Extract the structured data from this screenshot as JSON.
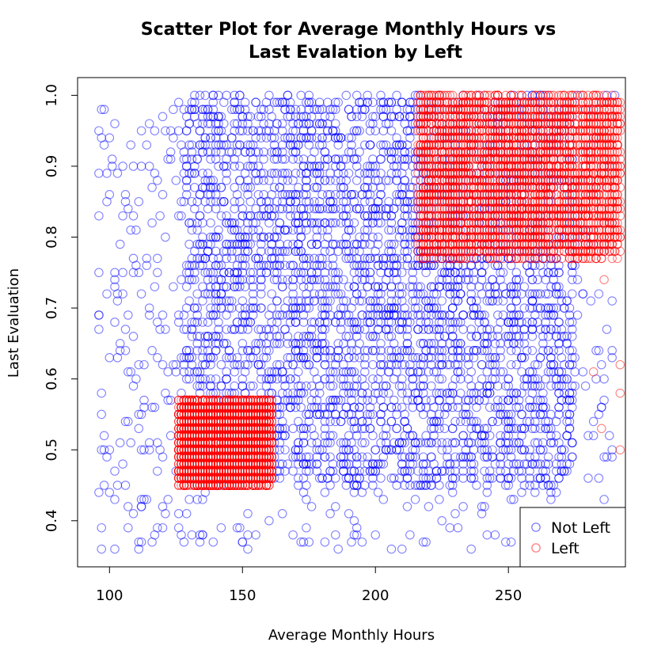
{
  "chart_data": {
    "type": "scatter",
    "title": "Scatter Plot for Average Monthly Hours vs\nLast Evalation by Left",
    "title_lines": [
      "Scatter Plot for Average Monthly Hours vs",
      "Last Evalation by Left"
    ],
    "xlabel": "Average Monthly Hours",
    "ylabel": "Last Evaluation",
    "xlim": [
      88,
      294
    ],
    "ylim": [
      0.335,
      1.025
    ],
    "x_ticks": [
      100,
      150,
      200,
      250
    ],
    "y_ticks": [
      0.4,
      0.5,
      0.6,
      0.7,
      0.8,
      0.9,
      1.0
    ],
    "x_tick_labels": [
      "100",
      "150",
      "200",
      "250"
    ],
    "y_tick_labels": [
      "0.4",
      "0.5",
      "0.6",
      "0.7",
      "0.8",
      "0.9",
      "1.0"
    ],
    "grid": false,
    "marker": "open-circle",
    "legend": {
      "placement": "bottom-right",
      "entries": [
        {
          "label": "Not Left",
          "color": "#0000ff"
        },
        {
          "label": "Left",
          "color": "#ff0000"
        }
      ]
    },
    "series": [
      {
        "name": "Not Left",
        "color": "#0000ff",
        "regions": [
          {
            "x": [
              96,
              290
            ],
            "y": [
              0.36,
              1.0
            ],
            "density": "sparse"
          },
          {
            "x": [
              128,
              275
            ],
            "y": [
              0.45,
              1.0
            ],
            "density": "dense"
          }
        ],
        "points": [
          [
            98,
            0.98
          ],
          [
            100,
            0.63
          ],
          [
            102,
            0.36
          ],
          [
            105,
            0.9
          ],
          [
            107,
            0.42
          ],
          [
            110,
            0.76
          ],
          [
            112,
            0.55
          ],
          [
            115,
            0.69
          ],
          [
            118,
            0.39
          ],
          [
            120,
            0.86
          ],
          [
            122,
            0.61
          ],
          [
            125,
            0.47
          ],
          [
            126,
            0.99
          ],
          [
            128,
            0.37
          ],
          [
            135,
            0.38
          ],
          [
            150,
            0.37
          ],
          [
            160,
            0.4
          ],
          [
            175,
            0.37
          ],
          [
            190,
            0.41
          ],
          [
            200,
            0.38
          ],
          [
            215,
            0.43
          ],
          [
            230,
            0.41
          ],
          [
            245,
            0.38
          ],
          [
            260,
            0.44
          ],
          [
            268,
            0.37
          ],
          [
            280,
            0.52
          ],
          [
            284,
            0.72
          ],
          [
            286,
            0.6
          ],
          [
            289,
            0.64
          ]
        ]
      },
      {
        "name": "Left",
        "color": "#ff0000",
        "regions": [
          {
            "x": [
              126,
              161
            ],
            "y": [
              0.45,
              0.57
            ],
            "density": "dense"
          },
          {
            "x": [
              216,
              292
            ],
            "y": [
              0.77,
              1.0
            ],
            "density": "dense"
          }
        ],
        "points": [
          [
            126,
            0.45
          ],
          [
            140,
            0.52
          ],
          [
            161,
            0.57
          ],
          [
            220,
            1.0
          ],
          [
            240,
            0.9
          ],
          [
            260,
            0.85
          ],
          [
            275,
            0.95
          ],
          [
            284,
            0.8
          ],
          [
            289,
            0.83
          ],
          [
            292,
            0.5
          ],
          [
            292,
            0.58
          ],
          [
            292,
            0.62
          ],
          [
            289,
            0.79
          ],
          [
            282,
            0.61
          ],
          [
            285,
            0.53
          ],
          [
            286,
            0.74
          ]
        ]
      }
    ]
  }
}
